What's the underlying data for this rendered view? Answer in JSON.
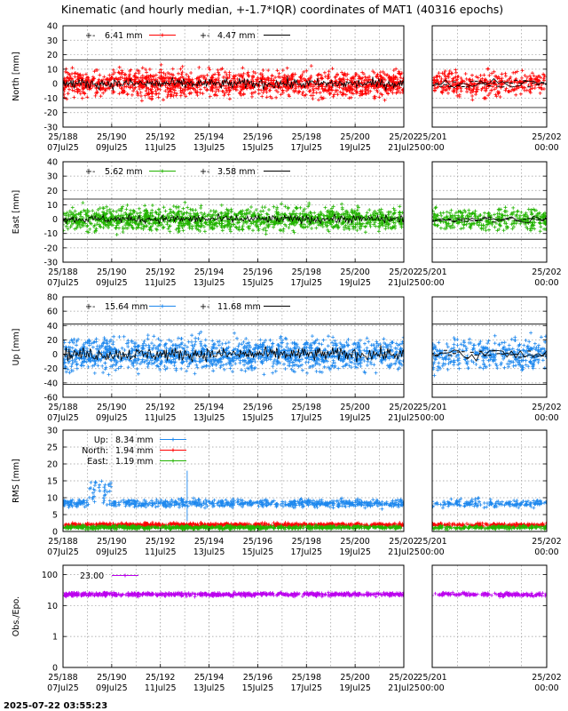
{
  "title": "Kinematic (and hourly median, +-1.7*IQR) coordinates of MAT1 (40316 epochs)",
  "footer_timestamp": "2025-07-22 03:55:23",
  "colors": {
    "north": "#ff0000",
    "east": "#22b400",
    "up": "#1e88ee",
    "obs": "#bb00ee",
    "median": "#000000"
  },
  "chart_data": [
    {
      "type": "scatter",
      "name": "north",
      "ylabel": "North [mm]",
      "ylim": [
        -30,
        40
      ],
      "yticks": [
        -30,
        -20,
        -10,
        0,
        10,
        20,
        30,
        40
      ],
      "xlim": [
        188,
        202
      ],
      "xticks": [
        {
          "label": "25/188",
          "sub": "07Jul25"
        },
        {
          "label": "25/190",
          "sub": "09Jul25"
        },
        {
          "label": "25/192",
          "sub": "11Jul25"
        },
        {
          "label": "25/194",
          "sub": "13Jul25"
        },
        {
          "label": "25/196",
          "sub": "15Jul25"
        },
        {
          "label": "25/198",
          "sub": "17Jul25"
        },
        {
          "label": "25/200",
          "sub": "19Jul25"
        },
        {
          "label": "25/202",
          "sub": "21Jul25"
        }
      ],
      "zoom_xlim": [
        200.9,
        202
      ],
      "zoom_xticks": [
        {
          "label": "25/201",
          "sub": "00:00"
        },
        {
          "label": "25/202",
          "sub": "00:00"
        }
      ],
      "band": [
        -16.5,
        16.5
      ],
      "legend": [
        {
          "label": "6.41 mm",
          "color": "north"
        },
        {
          "label": "4.47 mm",
          "color": "median"
        }
      ],
      "series": [
        {
          "name": "Kinematic",
          "color": "north",
          "spread": 6.41
        },
        {
          "name": "Hourly median",
          "color": "median",
          "spread": 4.47
        }
      ]
    },
    {
      "type": "scatter",
      "name": "east",
      "ylabel": "East [mm]",
      "ylim": [
        -30,
        40
      ],
      "yticks": [
        -30,
        -20,
        -10,
        0,
        10,
        20,
        30,
        40
      ],
      "xlim": [
        188,
        202
      ],
      "xticks": [
        {
          "label": "25/188",
          "sub": "07Jul25"
        },
        {
          "label": "25/190",
          "sub": "09Jul25"
        },
        {
          "label": "25/192",
          "sub": "11Jul25"
        },
        {
          "label": "25/194",
          "sub": "13Jul25"
        },
        {
          "label": "25/196",
          "sub": "15Jul25"
        },
        {
          "label": "25/198",
          "sub": "17Jul25"
        },
        {
          "label": "25/200",
          "sub": "19Jul25"
        },
        {
          "label": "25/202",
          "sub": "21Jul25"
        }
      ],
      "zoom_xlim": [
        200.9,
        202
      ],
      "zoom_xticks": [
        {
          "label": "25/201",
          "sub": "00:00"
        },
        {
          "label": "25/202",
          "sub": "00:00"
        }
      ],
      "band": [
        -14,
        14
      ],
      "legend": [
        {
          "label": "5.62 mm",
          "color": "east"
        },
        {
          "label": "3.58 mm",
          "color": "median"
        }
      ],
      "series": [
        {
          "name": "Kinematic",
          "color": "east",
          "spread": 5.62
        },
        {
          "name": "Hourly median",
          "color": "median",
          "spread": 3.58
        }
      ]
    },
    {
      "type": "scatter",
      "name": "up",
      "ylabel": "Up [mm]",
      "ylim": [
        -60,
        80
      ],
      "yticks": [
        -60,
        -40,
        -20,
        0,
        20,
        40,
        60,
        80
      ],
      "xlim": [
        188,
        202
      ],
      "xticks": [
        {
          "label": "25/188",
          "sub": "07Jul25"
        },
        {
          "label": "25/190",
          "sub": "09Jul25"
        },
        {
          "label": "25/192",
          "sub": "11Jul25"
        },
        {
          "label": "25/194",
          "sub": "13Jul25"
        },
        {
          "label": "25/196",
          "sub": "15Jul25"
        },
        {
          "label": "25/198",
          "sub": "17Jul25"
        },
        {
          "label": "25/200",
          "sub": "19Jul25"
        },
        {
          "label": "25/202",
          "sub": "21Jul25"
        }
      ],
      "zoom_xlim": [
        200.9,
        202
      ],
      "zoom_xticks": [
        {
          "label": "25/201",
          "sub": "00:00"
        },
        {
          "label": "25/202",
          "sub": "00:00"
        }
      ],
      "band": [
        -42,
        42
      ],
      "legend": [
        {
          "label": "15.64 mm",
          "color": "up"
        },
        {
          "label": "11.68 mm",
          "color": "median"
        }
      ],
      "series": [
        {
          "name": "Kinematic",
          "color": "up",
          "spread": 15.64
        },
        {
          "name": "Hourly median",
          "color": "median",
          "spread": 11.68
        }
      ]
    },
    {
      "type": "scatter",
      "name": "rms",
      "ylabel": "RMS [mm]",
      "ylim": [
        0,
        30
      ],
      "yticks": [
        0,
        5,
        10,
        15,
        20,
        25,
        30
      ],
      "xlim": [
        188,
        202
      ],
      "xticks": [
        {
          "label": "25/188",
          "sub": "07Jul25"
        },
        {
          "label": "25/190",
          "sub": "09Jul25"
        },
        {
          "label": "25/192",
          "sub": "11Jul25"
        },
        {
          "label": "25/194",
          "sub": "13Jul25"
        },
        {
          "label": "25/196",
          "sub": "15Jul25"
        },
        {
          "label": "25/198",
          "sub": "17Jul25"
        },
        {
          "label": "25/200",
          "sub": "19Jul25"
        },
        {
          "label": "25/202",
          "sub": "21Jul25"
        }
      ],
      "zoom_xlim": [
        200.9,
        202
      ],
      "zoom_xticks": [
        {
          "label": "25/201",
          "sub": "00:00"
        },
        {
          "label": "25/202",
          "sub": "00:00"
        }
      ],
      "legend": [
        {
          "name": "Up:",
          "label": "8.34 mm",
          "color": "up"
        },
        {
          "name": "North:",
          "label": "1.94 mm",
          "color": "north"
        },
        {
          "name": "East:",
          "label": "1.19 mm",
          "color": "east"
        }
      ],
      "series": [
        {
          "name": "Up",
          "color": "up",
          "mean": 8.34
        },
        {
          "name": "North",
          "color": "north",
          "mean": 1.94
        },
        {
          "name": "East",
          "color": "east",
          "mean": 1.19
        }
      ]
    },
    {
      "type": "scatter",
      "name": "obs",
      "ylabel": "Obs./Epo.",
      "yscale": "log",
      "ylim": [
        0.1,
        200
      ],
      "yticks": [
        {
          "value": 0.1,
          "label": "0"
        },
        {
          "value": 1,
          "label": "1"
        },
        {
          "value": 10,
          "label": "10"
        },
        {
          "value": 100,
          "label": "100"
        }
      ],
      "xlim": [
        188,
        202
      ],
      "xticks": [
        {
          "label": "25/188",
          "sub": "07Jul25"
        },
        {
          "label": "25/190",
          "sub": "09Jul25"
        },
        {
          "label": "25/192",
          "sub": "11Jul25"
        },
        {
          "label": "25/194",
          "sub": "13Jul25"
        },
        {
          "label": "25/196",
          "sub": "15Jul25"
        },
        {
          "label": "25/198",
          "sub": "17Jul25"
        },
        {
          "label": "25/200",
          "sub": "19Jul25"
        },
        {
          "label": "25/202",
          "sub": "21Jul25"
        }
      ],
      "zoom_xlim": [
        200.9,
        202
      ],
      "zoom_xticks": [
        {
          "label": "25/201",
          "sub": "00:00"
        },
        {
          "label": "25/202",
          "sub": "00:00"
        }
      ],
      "legend": [
        {
          "label": "23.00",
          "color": "obs"
        }
      ],
      "series": [
        {
          "name": "Obs./Epo.",
          "color": "obs",
          "mean": 23.0
        }
      ]
    }
  ]
}
